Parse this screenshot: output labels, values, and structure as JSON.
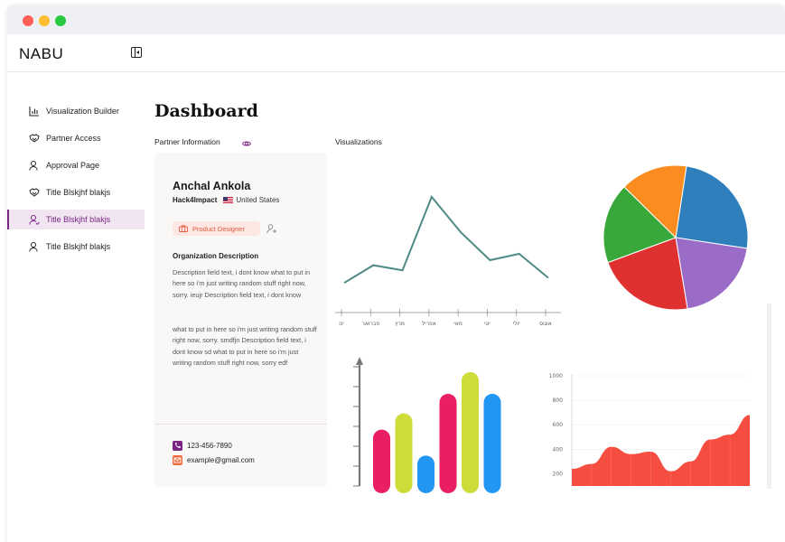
{
  "app": {
    "logo": "NABU"
  },
  "sidebar": {
    "items": [
      {
        "label": "Visualization Builder",
        "icon": "bar-chart-icon",
        "active": false
      },
      {
        "label": "Partner Access",
        "icon": "handshake-icon",
        "active": false
      },
      {
        "label": "Approval Page",
        "icon": "user-icon",
        "active": false
      },
      {
        "label": "Title Blskjhf blakjs",
        "icon": "handshake-icon",
        "active": false
      },
      {
        "label": "Title Blskjhf blakjs",
        "icon": "user-check-icon",
        "active": true
      },
      {
        "label": "Title Blskjhf blakjs",
        "icon": "user-icon",
        "active": false
      }
    ]
  },
  "main": {
    "title": "Dashboard",
    "partner_section_label": "Partner Information",
    "visualizations_label": "Visualizations"
  },
  "partner": {
    "name": "Anchal Ankola",
    "organization": "Hack4Impact",
    "country": "United States",
    "role": "Product Designer",
    "description_title": "Organization Description",
    "description_p1": "Description field text, i dont know what to put in here so i'm just writing random stuff right now, sorry. ieujr Description field text, i dont know",
    "description_p2": "what to put in here so i'm just writing random stuff right now, sorry. smdfjn Description field text, i dont know sd what to put in here so i'm just writing random stuff right now, sorry edf",
    "phone": "123-456-7890",
    "email": "example@gmail.com"
  },
  "colors": {
    "accent": "#7a2582",
    "line": "#4f8a86",
    "area": "#f44336",
    "chip_bg": "#fde7e2",
    "chip_text": "#e05a3f"
  },
  "chart_data": [
    {
      "type": "line",
      "categories": [
        "ינו",
        "פברואר",
        "מרץ",
        "אפריל",
        "מאי",
        "יוני",
        "יולי",
        "אוגוס"
      ],
      "values": [
        22,
        36,
        32,
        90,
        62,
        40,
        45,
        26
      ],
      "ylim": [
        0,
        100
      ]
    },
    {
      "type": "pie",
      "values": [
        25,
        20,
        22,
        18,
        15
      ],
      "colors": [
        "#2e7fbc",
        "#9b6cc7",
        "#e03131",
        "#38a83b",
        "#fb8c1f"
      ]
    },
    {
      "type": "bar",
      "values": [
        52,
        67,
        28,
        85,
        105,
        85
      ],
      "colors": [
        "#e91e63",
        "#cddc39",
        "#2196f3",
        "#e91e63",
        "#cddc39",
        "#2196f3"
      ],
      "ylim": [
        0,
        120
      ]
    },
    {
      "type": "area",
      "x": [
        0,
        1,
        2,
        3,
        4,
        5,
        6,
        7,
        8,
        9
      ],
      "values": [
        240,
        280,
        420,
        360,
        380,
        220,
        300,
        480,
        520,
        680
      ],
      "yticks": [
        200,
        400,
        600,
        800,
        1000
      ],
      "ylim": [
        100,
        1000
      ]
    }
  ]
}
